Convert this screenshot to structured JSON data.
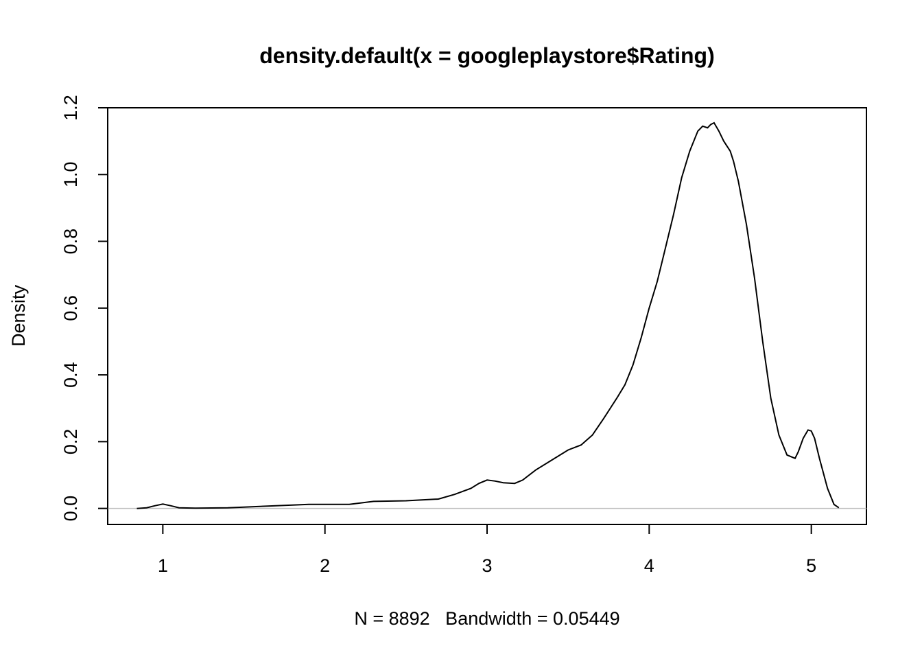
{
  "chart_data": {
    "type": "line",
    "title": "density.default(x = googleplaystore$Rating)",
    "xlabel": "N = 8892   Bandwidth = 0.05449",
    "ylabel": "Density",
    "xlim": [
      0.66,
      5.34
    ],
    "ylim": [
      -0.048,
      1.2
    ],
    "x_ticks": [
      "1",
      "2",
      "3",
      "4",
      "5"
    ],
    "y_ticks": [
      "0.0",
      "0.2",
      "0.4",
      "0.6",
      "0.8",
      "1.0",
      "1.2"
    ],
    "zero_line": true,
    "grid": false,
    "legend": "none",
    "series": [
      {
        "x": [
          0.84,
          0.9,
          0.95,
          1.0,
          1.05,
          1.1,
          1.2,
          1.4,
          1.6,
          1.8,
          1.9,
          2.0,
          2.15,
          2.3,
          2.5,
          2.7,
          2.8,
          2.9,
          2.95,
          3.0,
          3.05,
          3.1,
          3.17,
          3.22,
          3.3,
          3.4,
          3.5,
          3.58,
          3.65,
          3.72,
          3.8,
          3.85,
          3.9,
          3.95,
          4.0,
          4.05,
          4.1,
          4.15,
          4.2,
          4.25,
          4.3,
          4.33,
          4.36,
          4.38,
          4.4,
          4.43,
          4.46,
          4.5,
          4.52,
          4.55,
          4.6,
          4.65,
          4.7,
          4.75,
          4.8,
          4.85,
          4.9,
          4.92,
          4.95,
          4.98,
          5.0,
          5.02,
          5.05,
          5.1,
          5.14,
          5.17
        ],
        "y": [
          0.0,
          0.002,
          0.008,
          0.013,
          0.008,
          0.002,
          0.001,
          0.002,
          0.006,
          0.01,
          0.012,
          0.012,
          0.012,
          0.021,
          0.023,
          0.028,
          0.042,
          0.06,
          0.075,
          0.085,
          0.082,
          0.077,
          0.075,
          0.085,
          0.115,
          0.145,
          0.175,
          0.19,
          0.22,
          0.27,
          0.33,
          0.37,
          0.43,
          0.51,
          0.6,
          0.68,
          0.78,
          0.88,
          0.99,
          1.07,
          1.13,
          1.145,
          1.14,
          1.15,
          1.155,
          1.13,
          1.1,
          1.07,
          1.04,
          0.98,
          0.85,
          0.69,
          0.5,
          0.33,
          0.22,
          0.16,
          0.15,
          0.17,
          0.21,
          0.235,
          0.232,
          0.21,
          0.15,
          0.06,
          0.012,
          0.002
        ]
      }
    ]
  }
}
